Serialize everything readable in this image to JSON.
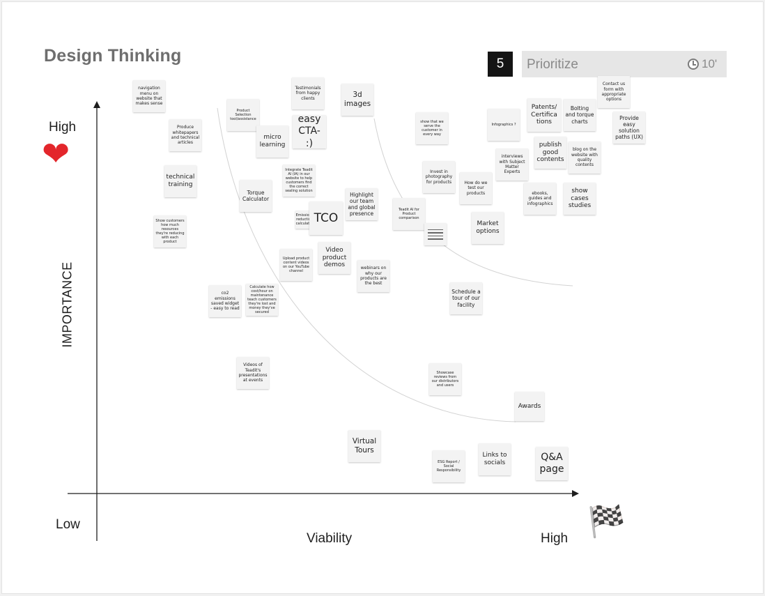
{
  "board": {
    "title": "Design Thinking",
    "step": {
      "number": "5",
      "label": "Prioritize",
      "timer": "10'"
    }
  },
  "axes": {
    "y_label": "IMPORTANCE",
    "y_high": "High",
    "origin_low": "Low",
    "x_label": "Viability",
    "x_high": "High",
    "heart_icon": "heart-icon",
    "flag_icon": "checkered-flag-icon"
  },
  "notes": [
    {
      "text": "navigation menu on website that makes sense"
    },
    {
      "text": "Produce whitepapers and technical articles"
    },
    {
      "text": "technical training"
    },
    {
      "text": "Show customers how much resources they're reducing with each product"
    },
    {
      "text": "Product Selection tool/assistance"
    },
    {
      "text": "micro learning"
    },
    {
      "text": "Testimonials from happy clients"
    },
    {
      "text": "easy CTA- :)"
    },
    {
      "text": "3d images"
    },
    {
      "text": "Integrate Teadit AI (IA) in our website to help customers find the correct sealing solution"
    },
    {
      "text": "Torque Calculator"
    },
    {
      "text": "Emissions reduction calculator"
    },
    {
      "text": "TCO"
    },
    {
      "text": "Highlight our team and global presence"
    },
    {
      "text": "Upload product content videos on our YouTube channel"
    },
    {
      "text": "Video product demos"
    },
    {
      "text": "webinars on why our products are the best"
    },
    {
      "text": "co2 emissions saved widget - easy to read"
    },
    {
      "text": "Calculate how cost/hour on maintenance teach customers they're lost and money they've secured"
    },
    {
      "text": "Videos of Teadit's presentations at events"
    },
    {
      "text": "Virtual Tours"
    },
    {
      "text": "show that we serve the customer in every way"
    },
    {
      "text": "Invest in photography for products"
    },
    {
      "text": "Teadit AI for Product comparison"
    },
    {
      "text": "How do we test our products"
    },
    {
      "text": "Market options"
    },
    {
      "text": "Schedule a tour of our facility"
    },
    {
      "text": "Showcase reviews from our distributors and users"
    },
    {
      "text": "ESG Report / Social Responsibility"
    },
    {
      "text": "Infographics ?"
    },
    {
      "text": "interviews with Subject Matter Experts"
    },
    {
      "text": "Patents/ Certifica tions"
    },
    {
      "text": "publish good contents"
    },
    {
      "text": "Bolting and torque charts"
    },
    {
      "text": "blog on the website with quality contents"
    },
    {
      "text": "Contact us form with appropriate options"
    },
    {
      "text": "Provide easy solution paths (UX)"
    },
    {
      "text": "ebooks, guides and infographics"
    },
    {
      "text": "show cases studies"
    },
    {
      "text": "Awards"
    },
    {
      "text": "Links to socials"
    },
    {
      "text": "Q&A page"
    }
  ]
}
